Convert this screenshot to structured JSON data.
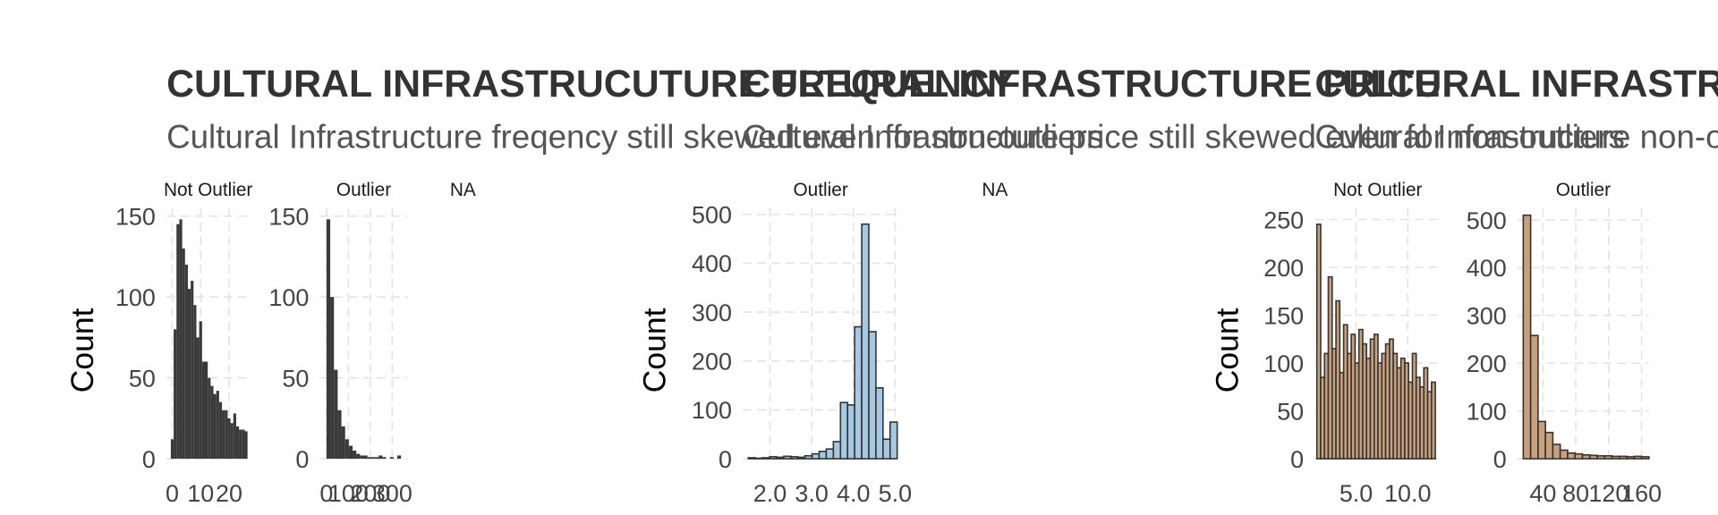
{
  "chart_data": [
    {
      "type": "facet_histogram",
      "title": "CULTURAL INFRASTRUCUTURE FREQUENCY",
      "subtitle": "Cultural Infrastructure freqency still skewed even for non-outliers",
      "y_label": "Count",
      "facets": [
        {
          "label": "Not Outlier",
          "color": "#3a3a3a",
          "grid": true,
          "bins": [
            -0.5,
            0.5,
            1.5,
            2.5,
            3.5,
            4.5,
            5.5,
            6.5,
            7.5,
            8.5,
            9.5,
            10.5,
            11.5,
            12.5,
            13.5,
            14.5,
            15.5,
            16.5,
            17.5,
            18.5,
            19.5,
            20.5,
            21.5,
            22.5,
            23.5,
            24.5,
            25.5,
            26.5
          ],
          "values": [
            12,
            80,
            145,
            148,
            130,
            120,
            105,
            110,
            95,
            75,
            85,
            60,
            60,
            50,
            45,
            40,
            42,
            35,
            30,
            30,
            25,
            22,
            28,
            20,
            18,
            18,
            17
          ],
          "xlim": [
            -2,
            27.3
          ],
          "ylim": [
            0,
            155
          ],
          "xticks": [
            0,
            10,
            20
          ],
          "yticks": [
            0,
            50,
            100,
            150
          ]
        },
        {
          "label": "Outlier",
          "color": "#3a3a3a",
          "grid": true,
          "bins": [
            0,
            17,
            34,
            51,
            68,
            85,
            102,
            119,
            136,
            153,
            170,
            187,
            204,
            221,
            238,
            255,
            272,
            289,
            306,
            323,
            340
          ],
          "values": [
            148,
            100,
            55,
            30,
            20,
            12,
            8,
            5,
            3,
            2,
            2,
            1,
            1,
            1,
            2,
            1,
            0,
            1,
            0,
            2
          ],
          "xlim": [
            -30,
            370
          ],
          "ylim": [
            0,
            155
          ],
          "xticks": [
            0,
            100,
            200,
            300
          ],
          "yticks": [
            0,
            50,
            100,
            150
          ]
        },
        {
          "label": "NA"
        }
      ]
    },
    {
      "type": "facet_histogram",
      "title": "CULTURAL INFRASTRUCTURE PRICE",
      "subtitle": "Cultural Infrastructure price still skewed even for non-outliers",
      "y_label": "Count",
      "facets": [
        {
          "label": "Outlier",
          "color": "#a6c8e0",
          "edgecolor": "#333333",
          "grid": true,
          "bins": [
            1.48,
            1.65,
            1.82,
            1.99,
            2.16,
            2.33,
            2.5,
            2.67,
            2.84,
            3.01,
            3.18,
            3.35,
            3.52,
            3.69,
            3.86,
            4.03,
            4.2,
            4.37,
            4.54,
            4.71,
            4.88,
            5.05
          ],
          "values": [
            2,
            1,
            2,
            4,
            3,
            5,
            4,
            3,
            6,
            10,
            15,
            20,
            35,
            115,
            110,
            270,
            480,
            260,
            145,
            40,
            75
          ],
          "xlim": [
            1.35,
            5.08
          ],
          "ylim": [
            0,
            513
          ],
          "xticks": [
            {
              "value": 2,
              "label": "2.0"
            },
            {
              "value": 3,
              "label": "3.0"
            },
            {
              "value": 4,
              "label": "4.0"
            },
            {
              "value": 5,
              "label": "5.0"
            }
          ],
          "yticks": [
            0,
            100,
            200,
            300,
            400,
            500
          ]
        },
        {
          "label": "NA"
        }
      ]
    },
    {
      "type": "facet_histogram",
      "title": "CULTURAL INFRASTRUCTURE SIZE",
      "subtitle": "Cultural Infrastructure non-outliers roughly uniform",
      "y_label": "Count",
      "facets": [
        {
          "label": "Not Outlier",
          "color": "#c9a07c",
          "edgecolor": "#333333",
          "grid": true,
          "bins": [
            1.2,
            1.57,
            1.94,
            2.31,
            2.68,
            3.05,
            3.42,
            3.79,
            4.16,
            4.53,
            4.9,
            5.27,
            5.64,
            6.01,
            6.38,
            6.75,
            7.12,
            7.49,
            7.86,
            8.23,
            8.6,
            8.97,
            9.34,
            9.71,
            10.08,
            10.45,
            10.82,
            11.19,
            11.56,
            11.93,
            12.3,
            12.67
          ],
          "values": [
            245,
            85,
            110,
            190,
            115,
            165,
            90,
            140,
            110,
            130,
            100,
            135,
            120,
            105,
            125,
            130,
            100,
            110,
            120,
            125,
            110,
            95,
            105,
            100,
            80,
            110,
            85,
            75,
            95,
            70,
            80
          ],
          "xlim": [
            1.0,
            13.2
          ],
          "ylim": [
            0,
            262
          ],
          "xticks": [
            {
              "value": 5,
              "label": "5.0"
            },
            {
              "value": 10,
              "label": "10.0"
            }
          ],
          "yticks": [
            0,
            50,
            100,
            150,
            200,
            250
          ]
        },
        {
          "label": "Outlier",
          "color": "#c9a07c",
          "edgecolor": "#333333",
          "grid": true,
          "bins": [
            16,
            25,
            34,
            43,
            52,
            61,
            70,
            79,
            88,
            97,
            106,
            115,
            124,
            133,
            142,
            151,
            160,
            169
          ],
          "values": [
            510,
            258,
            78,
            55,
            30,
            18,
            12,
            10,
            8,
            7,
            6,
            6,
            5,
            5,
            4,
            5,
            4
          ],
          "xlim": [
            9,
            169
          ],
          "ylim": [
            0,
            525
          ],
          "xticks": [
            40,
            80,
            120,
            160
          ],
          "yticks": [
            0,
            100,
            200,
            300,
            400,
            500
          ]
        }
      ]
    }
  ]
}
